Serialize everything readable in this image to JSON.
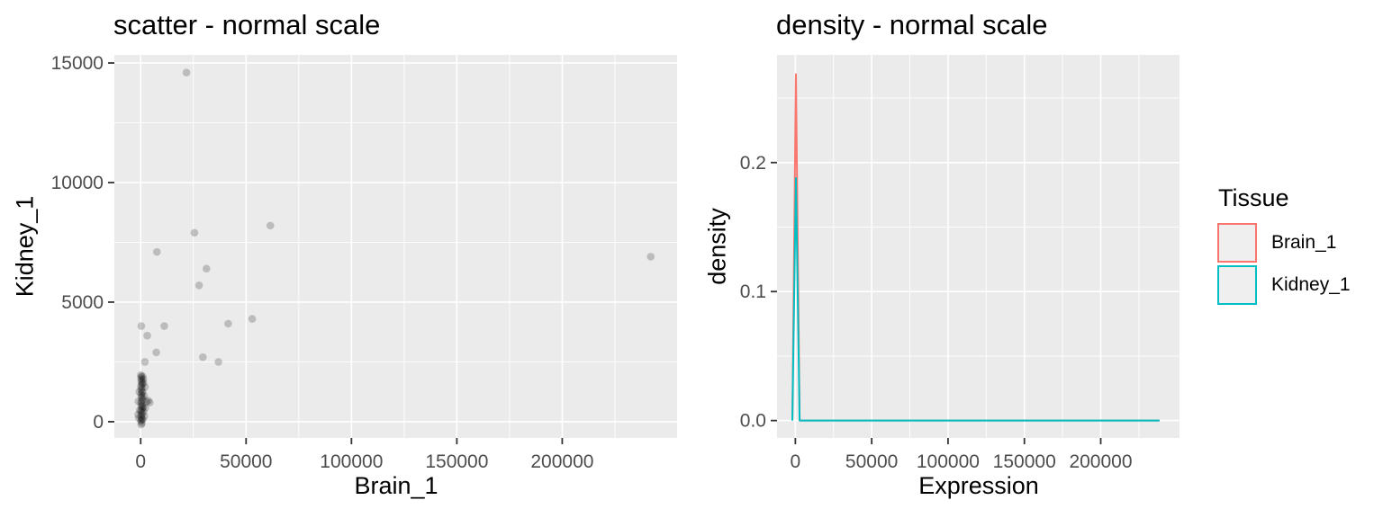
{
  "figure": {
    "bg": "#ffffff",
    "panel_bg": "#ebebeb",
    "grid_color": "#ffffff",
    "tick_color": "#333333",
    "tick_label_color": "#4d4d4d",
    "title_color": "#000000",
    "point_color": "#000000",
    "point_alpha": 0.2,
    "legend_key_bg": "#efefef"
  },
  "chart_data": [
    {
      "type": "scatter",
      "title": "scatter - normal scale",
      "xlabel": "Brain_1",
      "ylabel": "Kidney_1",
      "xlim": [
        -12500,
        254500
      ],
      "ylim": [
        -680,
        15340
      ],
      "xticks": [
        0,
        50000,
        100000,
        150000,
        200000
      ],
      "xtick_labels": [
        "0",
        "50000",
        "100000",
        "150000",
        "200000"
      ],
      "yticks": [
        0,
        5000,
        10000,
        15000
      ],
      "ytick_labels": [
        "0",
        "5000",
        "10000",
        "15000"
      ],
      "grid": "major+minor",
      "legend": "none",
      "points": [
        [
          21700,
          14600
        ],
        [
          61500,
          8200
        ],
        [
          25500,
          7900
        ],
        [
          7700,
          7100
        ],
        [
          31200,
          6400
        ],
        [
          27700,
          5700
        ],
        [
          52900,
          4300
        ],
        [
          41500,
          4100
        ],
        [
          300,
          4000
        ],
        [
          11200,
          4000
        ],
        [
          3100,
          3600
        ],
        [
          7400,
          2900
        ],
        [
          29500,
          2700
        ],
        [
          36900,
          2500
        ],
        [
          2000,
          2500
        ],
        [
          242000,
          6900
        ],
        [
          -900,
          150
        ],
        [
          -1100,
          850
        ],
        [
          -700,
          1250
        ],
        [
          -500,
          480
        ],
        [
          -1200,
          300
        ],
        [
          100,
          20
        ],
        [
          300,
          70
        ],
        [
          550,
          130
        ],
        [
          180,
          210
        ],
        [
          420,
          290
        ],
        [
          680,
          370
        ],
        [
          90,
          440
        ],
        [
          510,
          510
        ],
        [
          880,
          580
        ],
        [
          240,
          650
        ],
        [
          650,
          720
        ],
        [
          130,
          790
        ],
        [
          470,
          860
        ],
        [
          990,
          930
        ],
        [
          310,
          1000
        ],
        [
          740,
          1060
        ],
        [
          170,
          1130
        ],
        [
          560,
          1200
        ],
        [
          930,
          1260
        ],
        [
          230,
          1330
        ],
        [
          630,
          1400
        ],
        [
          80,
          1470
        ],
        [
          410,
          1540
        ],
        [
          800,
          1600
        ],
        [
          270,
          1670
        ],
        [
          520,
          1740
        ],
        [
          160,
          1810
        ],
        [
          350,
          1880
        ],
        [
          60,
          1950
        ],
        [
          1150,
          640
        ],
        [
          1450,
          420
        ],
        [
          1750,
          230
        ],
        [
          2250,
          580
        ],
        [
          2750,
          830
        ],
        [
          3600,
          880
        ],
        [
          4300,
          800
        ],
        [
          1250,
          1780
        ],
        [
          1650,
          1080
        ],
        [
          2050,
          1450
        ],
        [
          1050,
          100
        ],
        [
          1350,
          1620
        ],
        [
          250,
          -120
        ],
        [
          600,
          -60
        ],
        [
          900,
          1900
        ]
      ]
    },
    {
      "type": "line",
      "title": "density - normal scale",
      "xlabel": "Expression",
      "ylabel": "density",
      "xlim": [
        -12000,
        251600
      ],
      "ylim": [
        -0.0135,
        0.2835
      ],
      "xticks": [
        0,
        50000,
        100000,
        150000,
        200000
      ],
      "xtick_labels": [
        "0",
        "50000",
        "100000",
        "150000",
        "200000"
      ],
      "yticks": [
        0,
        0.1,
        0.2
      ],
      "ytick_labels": [
        "0.0",
        "0.1",
        "0.2"
      ],
      "grid": "major+minor",
      "legend": "right",
      "series": [
        {
          "name": "Brain_1",
          "color": "#F8766D",
          "points": [
            [
              -2000,
              0
            ],
            [
              400,
              0.2685
            ],
            [
              2800,
              0
            ],
            [
              238500,
              0
            ]
          ]
        },
        {
          "name": "Kidney_1",
          "color": "#00BFC4",
          "points": [
            [
              -2000,
              0
            ],
            [
              400,
              0.188
            ],
            [
              2800,
              0
            ],
            [
              238500,
              0
            ]
          ]
        }
      ]
    }
  ],
  "legend": {
    "title": "Tissue",
    "items": [
      {
        "label": "Brain_1",
        "color": "#F8766D"
      },
      {
        "label": "Kidney_1",
        "color": "#00BFC4"
      }
    ]
  }
}
